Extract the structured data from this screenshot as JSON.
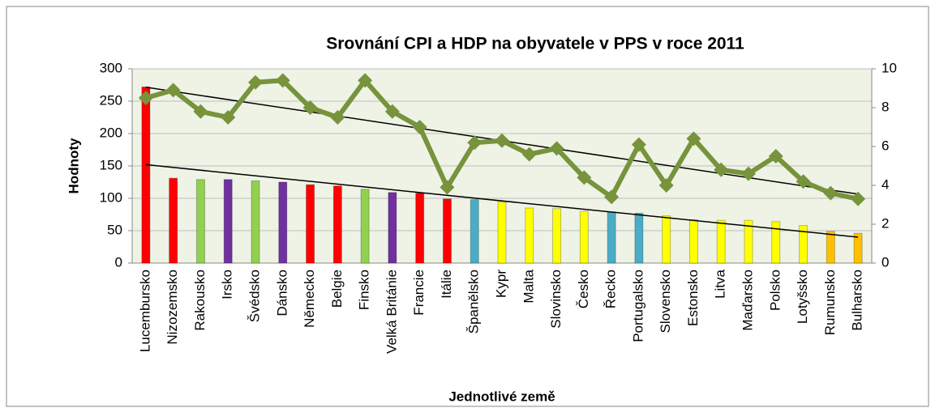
{
  "chart_data": {
    "type": "bar_line",
    "title": "Srovnání CPI a HDP na obyvatele v PPS v roce 2011",
    "ylabel": "Hodnoty",
    "xlabel": "Jednotlivé země",
    "categories": [
      "Lucembursko",
      "Nizozemsko",
      "Rakousko",
      "Irsko",
      "Švédsko",
      "Dánsko",
      "Německo",
      "Belgie",
      "Finsko",
      "Velká Británie",
      "Francie",
      "Itálie",
      "Španělsko",
      "Kypr",
      "Malta",
      "Slovinsko",
      "Česko",
      "Řecko",
      "Portugalsko",
      "Slovensko",
      "Estonsko",
      "Litva",
      "Maďarsko",
      "Polsko",
      "Lotyšsko",
      "Rumunsko",
      "Bulharsko"
    ],
    "series": [
      {
        "type": "bar",
        "axis": "y",
        "values": [
          272,
          131,
          129,
          129,
          127,
          125,
          121,
          119,
          114,
          109,
          108,
          99,
          98,
          94,
          85,
          84,
          80,
          79,
          77,
          73,
          67,
          66,
          66,
          64,
          58,
          49,
          46
        ],
        "colors": [
          "#ff0000",
          "#ff0000",
          "#92d050",
          "#7030a0",
          "#92d050",
          "#7030a0",
          "#ff0000",
          "#ff0000",
          "#92d050",
          "#7030a0",
          "#ff0000",
          "#ff0000",
          "#4bacc6",
          "#ffff00",
          "#ffff00",
          "#ffff00",
          "#ffff00",
          "#4bacc6",
          "#4bacc6",
          "#ffff00",
          "#ffff00",
          "#ffff00",
          "#ffff00",
          "#ffff00",
          "#ffff00",
          "#ffc000",
          "#ffc000"
        ]
      },
      {
        "type": "line",
        "axis": "y2",
        "color": "#77933c",
        "values": [
          8.5,
          8.9,
          7.8,
          7.5,
          9.3,
          9.4,
          8.0,
          7.5,
          9.4,
          7.8,
          7.0,
          3.9,
          6.2,
          6.3,
          5.6,
          5.9,
          4.4,
          3.4,
          6.1,
          4.0,
          6.4,
          4.8,
          4.6,
          5.5,
          4.2,
          3.6,
          3.3
        ]
      }
    ],
    "trendlines": [
      {
        "axis": "y",
        "values": [
          152,
          40
        ]
      },
      {
        "axis": "y2",
        "values": [
          9.05,
          3.55
        ]
      }
    ],
    "ylim": [
      0,
      300
    ],
    "yticks": [
      0,
      50,
      100,
      150,
      200,
      250,
      300
    ],
    "y2lim": [
      0,
      10
    ],
    "y2ticks": [
      0,
      2,
      4,
      6,
      8,
      10
    ],
    "grid": true
  }
}
